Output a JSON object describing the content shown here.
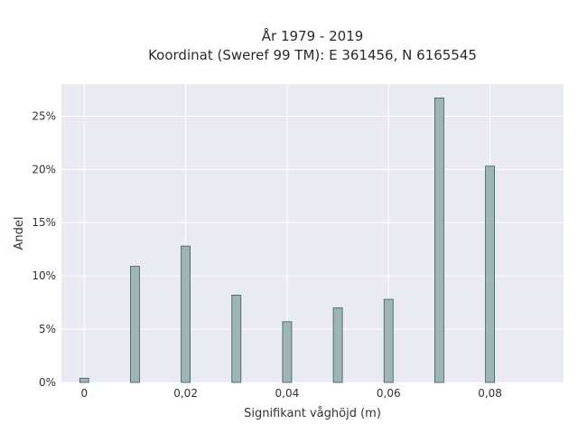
{
  "chart_data": {
    "type": "bar",
    "title": "År 1979 - 2019",
    "subtitle": "Koordinat (Sweref 99 TM): E 361456, N 6165545",
    "xlabel": "Signifikant våghöjd (m)",
    "ylabel": "Andel",
    "x": [
      0,
      0.01,
      0.02,
      0.03,
      0.04,
      0.05,
      0.06,
      0.07,
      0.08
    ],
    "values": [
      0.4,
      10.9,
      12.8,
      8.2,
      5.7,
      7.0,
      7.8,
      26.7,
      20.3
    ],
    "xlim": [
      -0.0045,
      0.0945
    ],
    "ylim": [
      0,
      28
    ],
    "x_ticks": [
      0,
      0.02,
      0.04,
      0.06,
      0.08
    ],
    "x_tick_labels": [
      "0",
      "0,02",
      "0,04",
      "0,06",
      "0,08"
    ],
    "y_ticks": [
      0,
      5,
      10,
      15,
      20,
      25
    ],
    "y_tick_labels": [
      "0%",
      "5%",
      "10%",
      "15%",
      "20%",
      "25%"
    ],
    "grid": true,
    "colors": {
      "bar_fill": "#9db5b5",
      "bar_stroke": "#3f5a5a",
      "plot_background": "#e9eaf2",
      "grid": "#ffffff"
    }
  }
}
